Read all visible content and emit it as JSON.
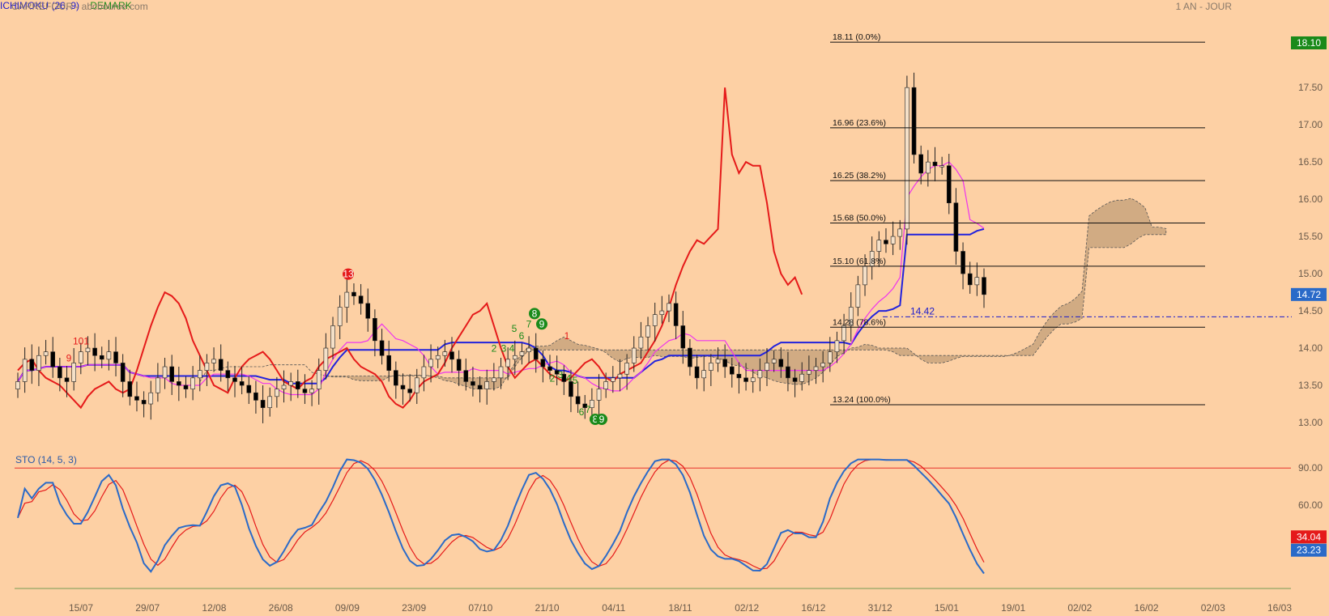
{
  "header": {
    "title": "CARREFOUR - abcbourse.com",
    "period": "1 AN - JOUR",
    "ichimoku_label": "ICHIMOKU (26, 9)",
    "demark_label": "DEMARK",
    "sto_label": "STO (14, 5, 3)"
  },
  "colors": {
    "background": "#fdd0a4",
    "candle_up": "#f4e0c8",
    "candle_down": "#000000",
    "kijun": "#2222dd",
    "tenkan": "#ee33ee",
    "lagging": "#e51a1a",
    "cloud": "#c9a47e",
    "sto_k": "#2a6ac8",
    "sto_d": "#e51a1a",
    "price_badge_up": "#1a8a1a",
    "price_badge": "#2a6ac8",
    "sto_badge_d": "#e51a1a"
  },
  "chart_data": [
    {
      "type": "candlestick",
      "title": "CARREFOUR - abcbourse.com",
      "ylim": [
        12.75,
        18.35
      ],
      "y_ticks": [
        "13.00",
        "13.50",
        "14.00",
        "14.50",
        "15.00",
        "15.50",
        "16.00",
        "16.50",
        "17.00",
        "17.50"
      ],
      "x_ticks": [
        "15/07",
        "29/07",
        "12/08",
        "26/08",
        "09/09",
        "23/09",
        "07/10",
        "21/10",
        "04/11",
        "18/11",
        "02/12",
        "16/12",
        "31/12",
        "15/01",
        "19/01",
        "02/02",
        "16/02",
        "02/03",
        "16/03"
      ],
      "last_price": "14.72",
      "high_label": "18.10",
      "fibonacci": [
        {
          "price": 18.11,
          "label": "18.11  (0.0%)"
        },
        {
          "price": 16.96,
          "label": "16.96  (23.6%)"
        },
        {
          "price": 16.25,
          "label": "16.25  (38.2%)"
        },
        {
          "price": 15.68,
          "label": "15.68  (50.0%)"
        },
        {
          "price": 15.1,
          "label": "15.10  (61.8%)"
        },
        {
          "price": 14.28,
          "label": "14.28  (78.6%)"
        },
        {
          "price": 13.24,
          "label": "13.24  (100.0%)"
        }
      ],
      "support": {
        "price": 14.42,
        "label": "14.42"
      },
      "demark_labels": [
        "101",
        "9",
        "13",
        "5",
        "6",
        "7",
        "8",
        "9",
        "1",
        "2",
        "3",
        "4",
        "2",
        "3",
        "4",
        "5",
        "6",
        "7",
        "8",
        "9"
      ],
      "closes": [
        13.55,
        13.85,
        13.7,
        13.9,
        13.95,
        13.75,
        13.6,
        13.55,
        13.8,
        13.95,
        14.0,
        13.9,
        13.85,
        13.95,
        13.8,
        13.55,
        13.35,
        13.3,
        13.25,
        13.4,
        13.6,
        13.75,
        13.55,
        13.5,
        13.45,
        13.6,
        13.7,
        13.8,
        13.85,
        13.7,
        13.6,
        13.55,
        13.5,
        13.4,
        13.3,
        13.2,
        13.35,
        13.45,
        13.5,
        13.55,
        13.45,
        13.4,
        13.45,
        13.7,
        14.0,
        14.3,
        14.55,
        14.75,
        14.7,
        14.6,
        14.4,
        14.1,
        13.9,
        13.7,
        13.5,
        13.45,
        13.4,
        13.6,
        13.75,
        13.85,
        13.9,
        13.95,
        13.85,
        13.7,
        13.55,
        13.5,
        13.45,
        13.55,
        13.6,
        13.75,
        13.85,
        13.9,
        13.95,
        14.0,
        13.85,
        13.75,
        13.7,
        13.65,
        13.55,
        13.35,
        13.25,
        13.2,
        13.3,
        13.45,
        13.55,
        13.6,
        13.65,
        13.8,
        14.0,
        14.15,
        14.3,
        14.45,
        14.5,
        14.6,
        14.3,
        14.0,
        13.75,
        13.6,
        13.7,
        13.8,
        13.85,
        13.75,
        13.65,
        13.6,
        13.55,
        13.6,
        13.7,
        13.8,
        13.85,
        13.75,
        13.6,
        13.55,
        13.65,
        13.7,
        13.75,
        13.8,
        13.95,
        14.1,
        14.3,
        14.55,
        14.85,
        15.1,
        15.3,
        15.45,
        15.4,
        15.5,
        15.6,
        17.5,
        16.6,
        16.35,
        16.5,
        16.45,
        16.45,
        15.95,
        15.3,
        15.0,
        14.85,
        14.95,
        14.72
      ],
      "sto_ylim": [
        0,
        100
      ],
      "sto_ticks": [
        "60.00",
        "90.00"
      ],
      "sto_k_last": "23.23",
      "sto_d_last": "34.04"
    }
  ]
}
